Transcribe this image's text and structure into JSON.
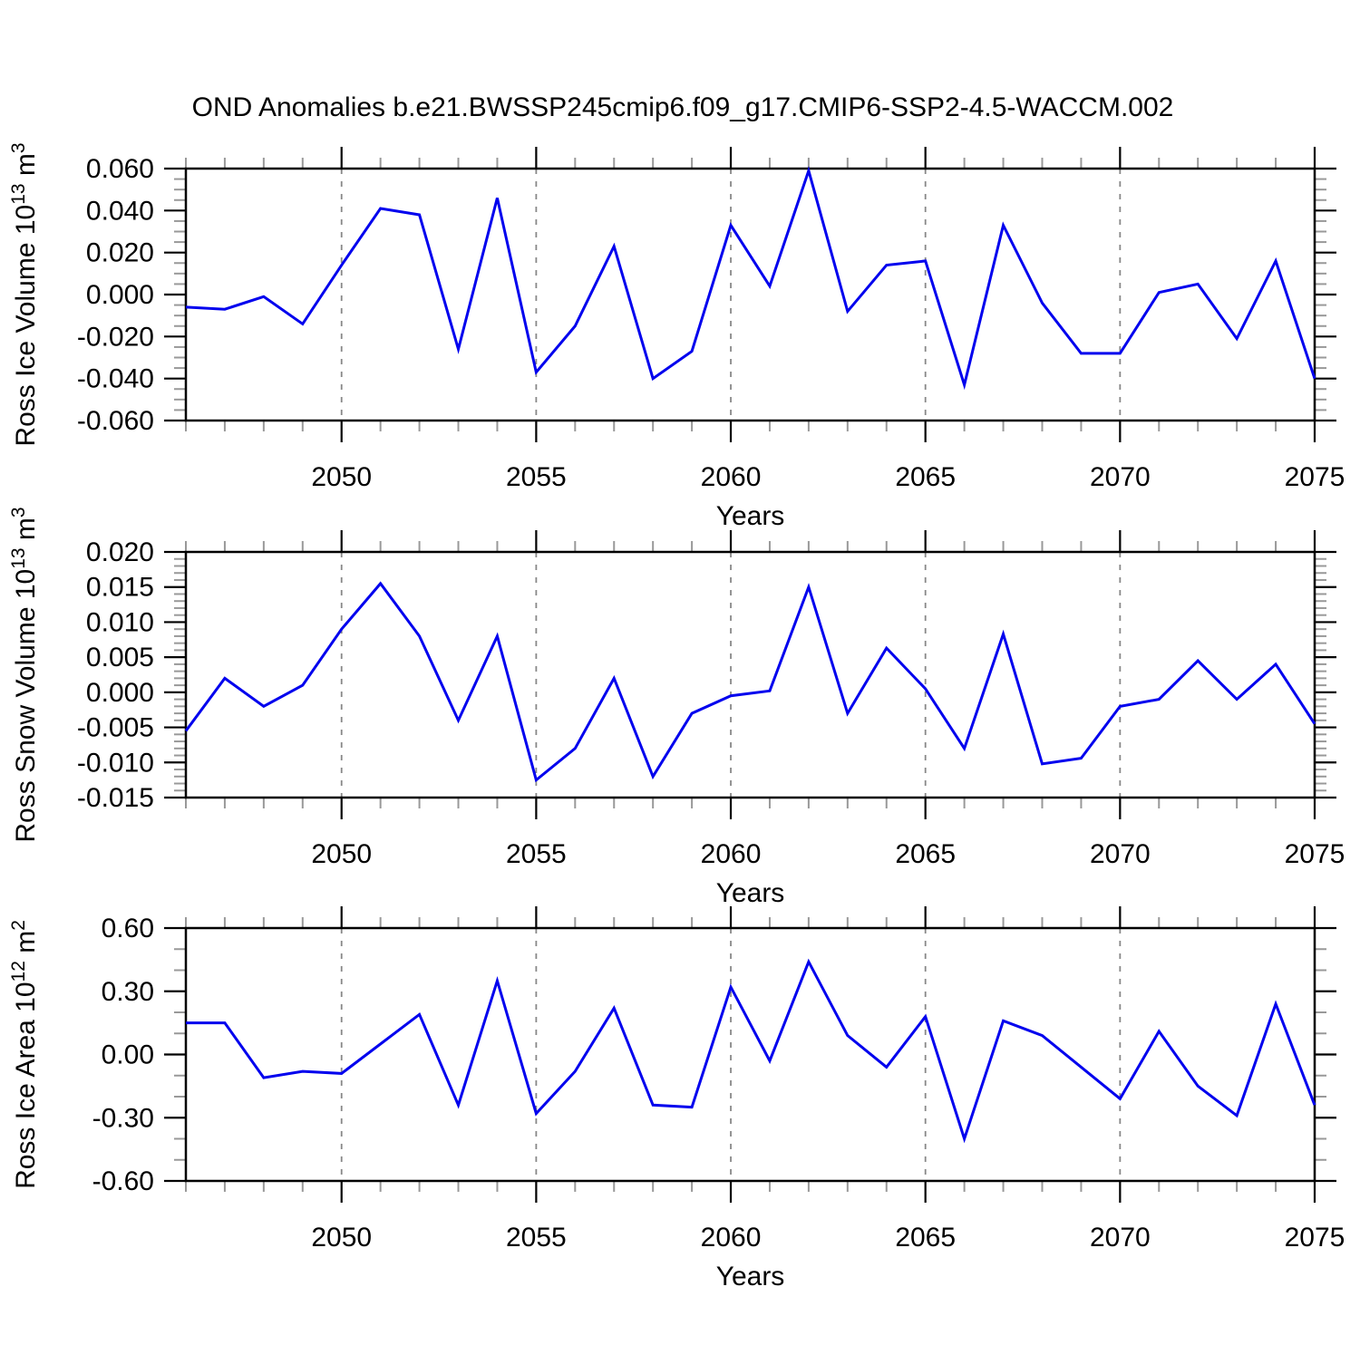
{
  "title": "OND Anomalies b.e21.BWSSP245cmip6.f09_g17.CMIP6-SSP2-4.5-WACCM.002",
  "colors": {
    "line": "#0000ee",
    "grid": "#888888",
    "axis": "#000000",
    "minor_tick": "#999999",
    "background": "#ffffff"
  },
  "chart_data": [
    {
      "type": "line",
      "name": "ross-ice-volume",
      "ylabel": "Ross Ice Volume 10¹³ m³",
      "ylabel_parts": [
        {
          "t": "Ross Ice Volume 10"
        },
        {
          "t": "13",
          "sup": true
        },
        {
          "t": " m"
        },
        {
          "t": "3",
          "sup": true
        }
      ],
      "xlabel": "Years",
      "x": [
        2046,
        2047,
        2048,
        2049,
        2050,
        2051,
        2052,
        2053,
        2054,
        2055,
        2056,
        2057,
        2058,
        2059,
        2060,
        2061,
        2062,
        2063,
        2064,
        2065,
        2066,
        2067,
        2068,
        2069,
        2070,
        2071,
        2072,
        2073,
        2074,
        2075
      ],
      "values": [
        -0.006,
        -0.007,
        -0.001,
        -0.014,
        0.014,
        0.041,
        0.038,
        -0.026,
        0.046,
        -0.037,
        -0.015,
        0.023,
        -0.04,
        -0.027,
        0.033,
        0.004,
        0.059,
        -0.008,
        0.014,
        0.016,
        -0.043,
        0.033,
        -0.004,
        -0.028,
        -0.028,
        0.001,
        0.005,
        -0.021,
        0.016,
        -0.04
      ],
      "xlim": [
        2046,
        2075
      ],
      "ylim": [
        -0.06,
        0.06
      ],
      "xticks": [
        2050,
        2055,
        2060,
        2065,
        2070,
        2075
      ],
      "xtick_labels": [
        "2050",
        "2055",
        "2060",
        "2065",
        "2070",
        "2075"
      ],
      "xtick_minor_step": 1,
      "grid_x": [
        2050,
        2055,
        2060,
        2065,
        2070
      ],
      "yticks": [
        0.06,
        0.04,
        0.02,
        0.0,
        -0.02,
        -0.04,
        -0.06
      ],
      "ytick_labels": [
        "0.060",
        "0.040",
        "0.020",
        "0.000",
        "-0.020",
        "-0.040",
        "-0.060"
      ],
      "ytick_minor_step": 0.005,
      "grid": "x-only",
      "legend": "none"
    },
    {
      "type": "line",
      "name": "ross-snow-volume",
      "ylabel": "Ross Snow Volume 10¹³ m³",
      "ylabel_parts": [
        {
          "t": "Ross Snow Volume 10"
        },
        {
          "t": "13",
          "sup": true
        },
        {
          "t": " m"
        },
        {
          "t": "3",
          "sup": true
        }
      ],
      "xlabel": "Years",
      "x": [
        2046,
        2047,
        2048,
        2049,
        2050,
        2051,
        2052,
        2053,
        2054,
        2055,
        2056,
        2057,
        2058,
        2059,
        2060,
        2061,
        2062,
        2063,
        2064,
        2065,
        2066,
        2067,
        2068,
        2069,
        2070,
        2071,
        2072,
        2073,
        2074,
        2075
      ],
      "values": [
        -0.0055,
        0.002,
        -0.002,
        0.001,
        0.009,
        0.0155,
        0.008,
        -0.004,
        0.008,
        -0.0125,
        -0.008,
        0.002,
        -0.012,
        -0.003,
        -0.0005,
        0.0002,
        0.015,
        -0.003,
        0.0063,
        0.0005,
        -0.008,
        0.0083,
        -0.0102,
        -0.0094,
        -0.002,
        -0.001,
        0.0045,
        -0.001,
        0.004,
        -0.0045
      ],
      "xlim": [
        2046,
        2075
      ],
      "ylim": [
        -0.015,
        0.02
      ],
      "xticks": [
        2050,
        2055,
        2060,
        2065,
        2070,
        2075
      ],
      "xtick_labels": [
        "2050",
        "2055",
        "2060",
        "2065",
        "2070",
        "2075"
      ],
      "xtick_minor_step": 1,
      "grid_x": [
        2050,
        2055,
        2060,
        2065,
        2070
      ],
      "yticks": [
        0.02,
        0.015,
        0.01,
        0.005,
        0.0,
        -0.005,
        -0.01,
        -0.015
      ],
      "ytick_labels": [
        "0.020",
        "0.015",
        "0.010",
        "0.005",
        "0.000",
        "-0.005",
        "-0.010",
        "-0.015"
      ],
      "ytick_minor_step": 0.001,
      "grid": "x-only",
      "legend": "none"
    },
    {
      "type": "line",
      "name": "ross-ice-area",
      "ylabel": "Ross Ice Area 10¹² m²",
      "ylabel_parts": [
        {
          "t": "Ross Ice Area 10"
        },
        {
          "t": "12",
          "sup": true
        },
        {
          "t": " m"
        },
        {
          "t": "2",
          "sup": true
        }
      ],
      "xlabel": "Years",
      "x": [
        2046,
        2047,
        2048,
        2049,
        2050,
        2051,
        2052,
        2053,
        2054,
        2055,
        2056,
        2057,
        2058,
        2059,
        2060,
        2061,
        2062,
        2063,
        2064,
        2065,
        2066,
        2067,
        2068,
        2069,
        2070,
        2071,
        2072,
        2073,
        2074,
        2075
      ],
      "values": [
        0.15,
        0.15,
        -0.11,
        -0.08,
        -0.09,
        0.05,
        0.19,
        -0.24,
        0.35,
        -0.28,
        -0.08,
        0.22,
        -0.24,
        -0.25,
        0.32,
        -0.03,
        0.44,
        0.09,
        -0.06,
        0.18,
        -0.4,
        0.16,
        0.09,
        -0.06,
        -0.21,
        0.11,
        -0.15,
        -0.29,
        0.24,
        -0.24
      ],
      "xlim": [
        2046,
        2075
      ],
      "ylim": [
        -0.6,
        0.6
      ],
      "xticks": [
        2050,
        2055,
        2060,
        2065,
        2070,
        2075
      ],
      "xtick_labels": [
        "2050",
        "2055",
        "2060",
        "2065",
        "2070",
        "2075"
      ],
      "xtick_minor_step": 1,
      "grid_x": [
        2050,
        2055,
        2060,
        2065,
        2070
      ],
      "yticks": [
        0.6,
        0.3,
        0.0,
        -0.3,
        -0.6
      ],
      "ytick_labels": [
        "0.60",
        "0.30",
        "0.00",
        "-0.30",
        "-0.60"
      ],
      "ytick_minor_step": 0.1,
      "grid": "x-only",
      "legend": "none"
    }
  ]
}
